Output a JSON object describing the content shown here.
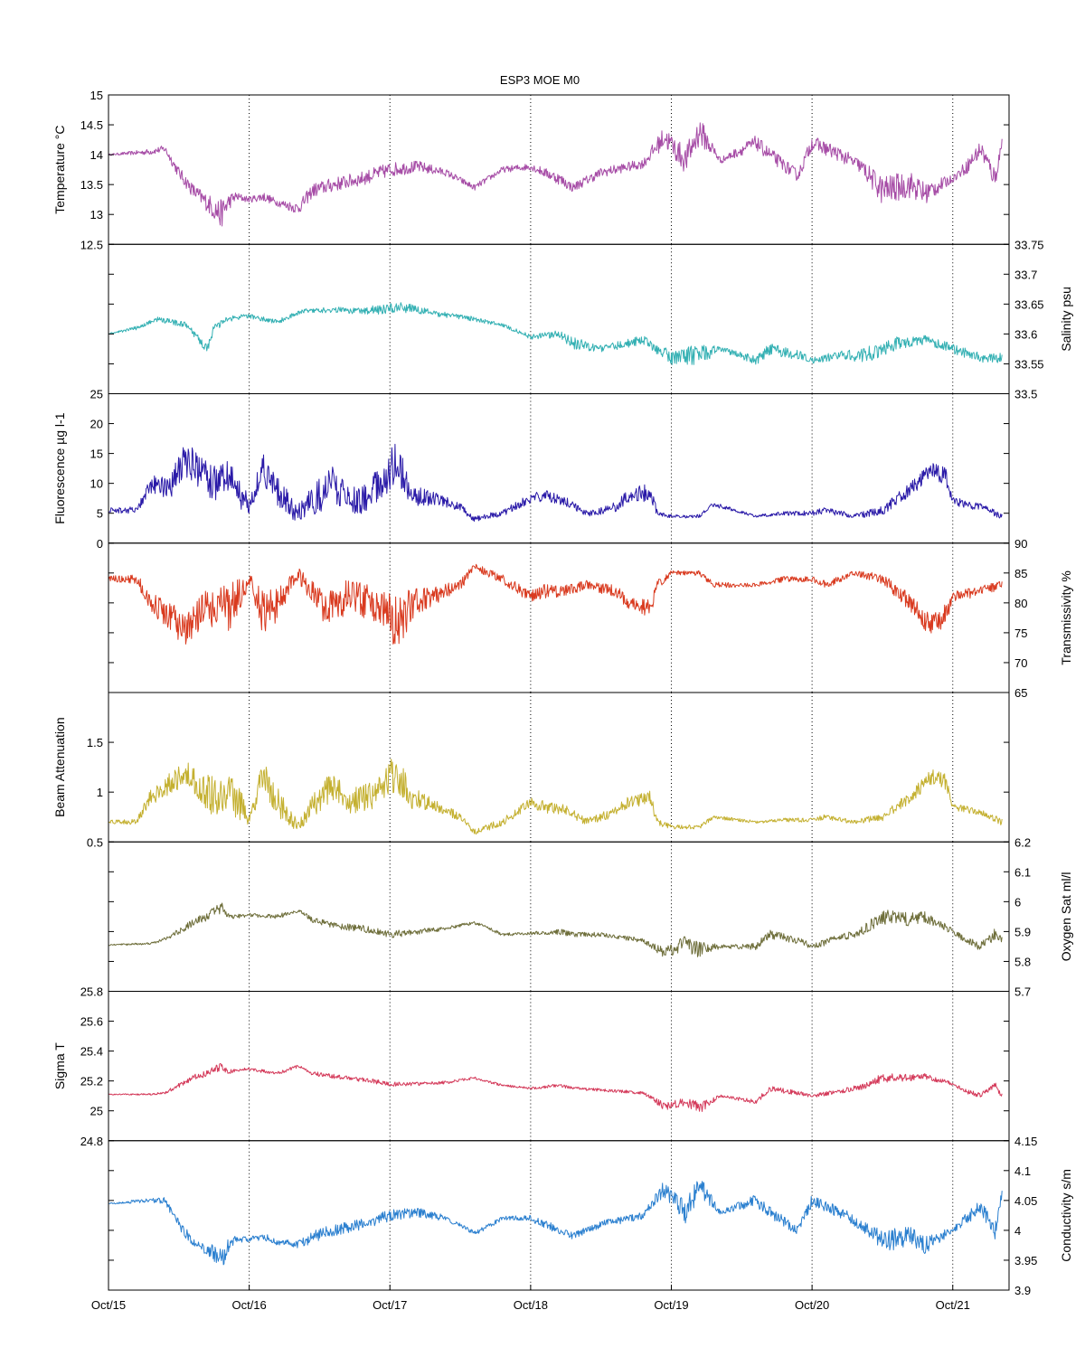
{
  "title": "ESP3 MOE   M0",
  "x_ticks": [
    "Oct/15",
    "Oct/16",
    "Oct/17",
    "Oct/18",
    "Oct/19",
    "Oct/20",
    "Oct/21"
  ],
  "chart_data": [
    {
      "type": "line",
      "ylabel": "Temperature °C",
      "label_side": "left",
      "ylim": [
        12.5,
        15
      ],
      "ticks": [
        12.5,
        13,
        13.5,
        14,
        14.5,
        15
      ],
      "show_top_tick": true,
      "color": "#a64ca6",
      "x": [
        15.0,
        15.3,
        15.4,
        15.5,
        15.6,
        15.7,
        15.8,
        15.85,
        15.9,
        16.0,
        16.1,
        16.2,
        16.35,
        16.45,
        16.6,
        16.8,
        17.0,
        17.2,
        17.4,
        17.6,
        17.8,
        18.0,
        18.2,
        18.3,
        18.5,
        18.8,
        18.95,
        19.1,
        19.2,
        19.35,
        19.6,
        19.7,
        19.9,
        20.0,
        20.2,
        20.35,
        20.5,
        20.7,
        20.8,
        21.0,
        21.1,
        21.2,
        21.3,
        21.35
      ],
      "y": [
        14.0,
        14.05,
        14.1,
        13.7,
        13.4,
        13.2,
        13.0,
        13.2,
        13.3,
        13.25,
        13.3,
        13.2,
        13.1,
        13.4,
        13.5,
        13.6,
        13.75,
        13.8,
        13.7,
        13.45,
        13.75,
        13.8,
        13.6,
        13.45,
        13.7,
        13.85,
        14.3,
        13.9,
        14.4,
        13.9,
        14.2,
        14.0,
        13.65,
        14.2,
        14.0,
        13.8,
        13.4,
        13.5,
        13.35,
        13.6,
        13.8,
        14.1,
        13.6,
        14.2
      ],
      "amp": [
        0.01,
        0.05,
        0.06,
        0.1,
        0.12,
        0.15,
        0.25,
        0.15,
        0.08,
        0.05,
        0.08,
        0.06,
        0.1,
        0.12,
        0.12,
        0.12,
        0.12,
        0.1,
        0.06,
        0.05,
        0.05,
        0.06,
        0.1,
        0.08,
        0.08,
        0.08,
        0.18,
        0.22,
        0.25,
        0.05,
        0.12,
        0.12,
        0.1,
        0.12,
        0.12,
        0.12,
        0.25,
        0.22,
        0.2,
        0.06,
        0.12,
        0.15,
        0.18,
        0.1
      ]
    },
    {
      "type": "line",
      "ylabel": "Salinity psu",
      "label_side": "right",
      "ylim": [
        33.5,
        33.75
      ],
      "ticks": [
        33.5,
        33.55,
        33.6,
        33.65,
        33.7,
        33.75
      ],
      "show_top_tick": true,
      "color": "#33b0b3",
      "x": [
        15.0,
        15.2,
        15.35,
        15.55,
        15.7,
        15.75,
        15.85,
        16.0,
        16.2,
        16.4,
        16.6,
        16.9,
        17.1,
        17.3,
        17.6,
        17.8,
        18.0,
        18.2,
        18.3,
        18.5,
        18.8,
        19.0,
        19.2,
        19.35,
        19.6,
        19.7,
        19.9,
        20.0,
        20.2,
        20.4,
        20.6,
        20.8,
        21.0,
        21.2,
        21.35
      ],
      "y": [
        33.6,
        33.61,
        33.625,
        33.615,
        33.575,
        33.61,
        33.625,
        33.63,
        33.62,
        33.64,
        33.64,
        33.64,
        33.645,
        33.635,
        33.625,
        33.615,
        33.595,
        33.6,
        33.585,
        33.575,
        33.59,
        33.56,
        33.565,
        33.575,
        33.555,
        33.575,
        33.565,
        33.555,
        33.565,
        33.565,
        33.585,
        33.59,
        33.575,
        33.56,
        33.56
      ],
      "amp": [
        0.001,
        0.003,
        0.004,
        0.005,
        0.008,
        0.006,
        0.005,
        0.004,
        0.004,
        0.004,
        0.005,
        0.008,
        0.009,
        0.005,
        0.004,
        0.003,
        0.004,
        0.006,
        0.01,
        0.006,
        0.008,
        0.012,
        0.018,
        0.004,
        0.008,
        0.01,
        0.008,
        0.005,
        0.008,
        0.014,
        0.012,
        0.008,
        0.008,
        0.008,
        0.008
      ]
    },
    {
      "type": "line",
      "ylabel": "Fluorescence µg l-1",
      "label_side": "left",
      "ylim": [
        0,
        25
      ],
      "ticks": [
        0,
        5,
        10,
        15,
        20,
        25
      ],
      "show_top_tick": true,
      "color": "#2a1aa8",
      "x": [
        15.0,
        15.2,
        15.3,
        15.45,
        15.55,
        15.65,
        15.75,
        15.85,
        15.95,
        16.0,
        16.1,
        16.2,
        16.35,
        16.5,
        16.6,
        16.7,
        16.85,
        16.95,
        17.05,
        17.15,
        17.3,
        17.5,
        17.6,
        17.8,
        18.0,
        18.1,
        18.25,
        18.4,
        18.6,
        18.7,
        18.85,
        18.9,
        19.0,
        19.2,
        19.3,
        19.6,
        19.8,
        20.0,
        20.1,
        20.3,
        20.5,
        20.7,
        20.85,
        20.95,
        21.0,
        21.2,
        21.35
      ],
      "y": [
        5.5,
        5.5,
        9.5,
        10,
        14,
        12,
        10,
        11,
        8,
        6,
        13,
        8,
        5,
        8,
        10,
        7,
        8,
        10,
        14,
        8,
        7.5,
        6,
        4,
        5,
        7.5,
        8,
        7,
        5,
        6,
        8,
        8.5,
        5,
        4.5,
        4.5,
        6.5,
        4.5,
        5,
        5,
        5.5,
        4.5,
        5.5,
        9,
        12.5,
        11,
        7,
        6,
        4.5
      ],
      "amp": [
        0.4,
        0.6,
        1.5,
        2.5,
        3,
        3,
        3,
        3,
        3,
        1,
        3,
        3,
        1.5,
        3,
        3,
        2.5,
        3,
        3,
        4,
        2,
        1.2,
        0.8,
        0.4,
        0.6,
        0.8,
        1,
        0.8,
        0.6,
        0.8,
        1.2,
        1.5,
        0.5,
        0.3,
        0.3,
        0.4,
        0.2,
        0.4,
        0.4,
        0.6,
        0.4,
        0.8,
        1.2,
        1.5,
        1.5,
        0.8,
        0.6,
        0.5
      ]
    },
    {
      "type": "line",
      "ylabel": "Transmissivity %",
      "label_side": "right",
      "ylim": [
        65,
        90
      ],
      "ticks": [
        65,
        70,
        75,
        80,
        85,
        90
      ],
      "show_top_tick": true,
      "color": "#d93a1f",
      "x": [
        15.0,
        15.2,
        15.3,
        15.45,
        15.55,
        15.65,
        15.75,
        15.85,
        15.95,
        16.0,
        16.1,
        16.2,
        16.35,
        16.5,
        16.6,
        16.7,
        16.85,
        16.95,
        17.05,
        17.15,
        17.3,
        17.5,
        17.6,
        17.8,
        18.0,
        18.1,
        18.25,
        18.4,
        18.6,
        18.7,
        18.85,
        18.9,
        19.0,
        19.2,
        19.3,
        19.6,
        19.8,
        20.0,
        20.1,
        20.3,
        20.5,
        20.7,
        20.85,
        20.95,
        21.0,
        21.2,
        21.35
      ],
      "y": [
        84,
        84,
        80,
        77,
        75,
        78,
        80,
        79,
        82,
        84,
        78,
        80,
        85,
        80,
        79,
        81,
        80,
        79,
        76,
        80,
        81,
        83,
        86,
        84,
        81,
        82,
        82,
        83,
        82,
        80,
        79,
        83,
        85,
        85,
        83,
        83,
        84,
        84,
        83,
        85,
        84,
        80,
        76,
        78,
        81,
        82,
        83
      ],
      "amp": [
        0.5,
        0.8,
        2,
        3,
        3,
        3,
        4,
        4,
        3,
        1,
        4,
        3,
        1.5,
        3,
        3,
        3,
        3,
        3,
        5,
        3,
        1.5,
        1,
        0.6,
        0.8,
        1,
        1.2,
        1,
        0.8,
        1,
        1.2,
        1.5,
        0.8,
        0.4,
        0.4,
        0.5,
        0.3,
        0.5,
        0.5,
        0.7,
        0.4,
        0.9,
        1.5,
        2,
        1.8,
        1,
        0.8,
        0.8
      ]
    },
    {
      "type": "line",
      "ylabel": "Beam Attenuation",
      "label_side": "left",
      "ylim": [
        0.5,
        2
      ],
      "ticks": [
        0.5,
        1,
        1.5,
        2
      ],
      "show_top_tick": false,
      "color": "#c4b030",
      "x": [
        15.0,
        15.2,
        15.3,
        15.45,
        15.55,
        15.65,
        15.75,
        15.85,
        15.95,
        16.0,
        16.1,
        16.2,
        16.35,
        16.5,
        16.6,
        16.7,
        16.85,
        16.95,
        17.05,
        17.15,
        17.3,
        17.5,
        17.6,
        17.8,
        18.0,
        18.1,
        18.25,
        18.4,
        18.6,
        18.7,
        18.85,
        18.9,
        19.0,
        19.2,
        19.3,
        19.6,
        19.8,
        20.0,
        20.1,
        20.3,
        20.5,
        20.7,
        20.85,
        20.95,
        21.0,
        21.2,
        21.35
      ],
      "y": [
        0.7,
        0.7,
        0.95,
        1.1,
        1.2,
        1.05,
        0.95,
        1.0,
        0.85,
        0.7,
        1.2,
        0.9,
        0.65,
        0.95,
        1.05,
        0.9,
        0.95,
        1.05,
        1.2,
        0.95,
        0.88,
        0.75,
        0.6,
        0.7,
        0.9,
        0.85,
        0.82,
        0.7,
        0.8,
        0.9,
        0.95,
        0.7,
        0.65,
        0.65,
        0.75,
        0.7,
        0.72,
        0.72,
        0.75,
        0.7,
        0.75,
        0.95,
        1.15,
        1.1,
        0.85,
        0.8,
        0.7
      ],
      "amp": [
        0.02,
        0.03,
        0.08,
        0.12,
        0.12,
        0.15,
        0.2,
        0.2,
        0.15,
        0.04,
        0.18,
        0.15,
        0.05,
        0.15,
        0.15,
        0.12,
        0.15,
        0.15,
        0.22,
        0.12,
        0.06,
        0.04,
        0.03,
        0.04,
        0.05,
        0.06,
        0.05,
        0.04,
        0.05,
        0.06,
        0.07,
        0.04,
        0.02,
        0.02,
        0.02,
        0.015,
        0.02,
        0.02,
        0.03,
        0.02,
        0.04,
        0.06,
        0.08,
        0.08,
        0.04,
        0.03,
        0.04
      ]
    },
    {
      "type": "line",
      "ylabel": "Oxygen Sat ml/l",
      "label_side": "right",
      "ylim": [
        5.7,
        6.2
      ],
      "ticks": [
        5.7,
        5.8,
        5.9,
        6,
        6.1,
        6.2
      ],
      "show_top_tick": true,
      "color": "#6e6e3a",
      "x": [
        15.0,
        15.3,
        15.4,
        15.5,
        15.6,
        15.7,
        15.8,
        15.85,
        15.9,
        16.0,
        16.2,
        16.35,
        16.45,
        16.6,
        16.8,
        17.0,
        17.2,
        17.4,
        17.6,
        17.8,
        18.0,
        18.2,
        18.3,
        18.5,
        18.8,
        18.95,
        19.1,
        19.2,
        19.35,
        19.6,
        19.7,
        19.9,
        20.0,
        20.2,
        20.35,
        20.5,
        20.7,
        20.8,
        21.0,
        21.1,
        21.2,
        21.3,
        21.35
      ],
      "y": [
        5.855,
        5.86,
        5.875,
        5.9,
        5.93,
        5.95,
        5.98,
        5.96,
        5.95,
        5.955,
        5.95,
        5.97,
        5.94,
        5.92,
        5.91,
        5.89,
        5.9,
        5.91,
        5.93,
        5.89,
        5.895,
        5.9,
        5.89,
        5.89,
        5.87,
        5.83,
        5.86,
        5.84,
        5.85,
        5.85,
        5.89,
        5.87,
        5.85,
        5.88,
        5.9,
        5.95,
        5.94,
        5.95,
        5.9,
        5.87,
        5.85,
        5.89,
        5.87
      ],
      "amp": [
        0.002,
        0.004,
        0.006,
        0.01,
        0.012,
        0.015,
        0.02,
        0.012,
        0.008,
        0.006,
        0.008,
        0.006,
        0.01,
        0.01,
        0.012,
        0.012,
        0.01,
        0.006,
        0.006,
        0.005,
        0.006,
        0.01,
        0.008,
        0.008,
        0.008,
        0.018,
        0.025,
        0.03,
        0.006,
        0.012,
        0.015,
        0.012,
        0.01,
        0.012,
        0.015,
        0.025,
        0.022,
        0.02,
        0.01,
        0.012,
        0.015,
        0.02,
        0.015
      ]
    },
    {
      "type": "line",
      "ylabel": "Sigma T",
      "label_side": "left",
      "ylim": [
        24.8,
        25.8
      ],
      "ticks": [
        24.8,
        25,
        25.2,
        25.4,
        25.6,
        25.8
      ],
      "show_top_tick": true,
      "color": "#d43a5a",
      "x": [
        15.0,
        15.3,
        15.4,
        15.5,
        15.6,
        15.7,
        15.8,
        15.85,
        15.9,
        16.0,
        16.2,
        16.35,
        16.45,
        16.6,
        16.8,
        17.0,
        17.2,
        17.4,
        17.6,
        17.8,
        18.0,
        18.2,
        18.3,
        18.5,
        18.8,
        18.95,
        19.1,
        19.2,
        19.35,
        19.6,
        19.7,
        19.9,
        20.0,
        20.2,
        20.35,
        20.5,
        20.7,
        20.8,
        21.0,
        21.1,
        21.2,
        21.3,
        21.35
      ],
      "y": [
        25.11,
        25.11,
        25.12,
        25.17,
        25.22,
        25.25,
        25.3,
        25.26,
        25.27,
        25.28,
        25.25,
        25.3,
        25.25,
        25.23,
        25.21,
        25.18,
        25.18,
        25.19,
        25.22,
        25.17,
        25.15,
        25.17,
        25.15,
        25.14,
        25.12,
        25.03,
        25.06,
        25.02,
        25.1,
        25.06,
        25.15,
        25.12,
        25.1,
        25.13,
        25.16,
        25.22,
        25.22,
        25.23,
        25.18,
        25.13,
        25.1,
        25.18,
        25.1
      ],
      "amp": [
        0.003,
        0.006,
        0.008,
        0.015,
        0.02,
        0.02,
        0.03,
        0.015,
        0.01,
        0.01,
        0.012,
        0.01,
        0.015,
        0.015,
        0.015,
        0.015,
        0.012,
        0.01,
        0.008,
        0.008,
        0.008,
        0.012,
        0.01,
        0.01,
        0.01,
        0.025,
        0.03,
        0.04,
        0.008,
        0.015,
        0.02,
        0.015,
        0.012,
        0.015,
        0.02,
        0.03,
        0.025,
        0.02,
        0.012,
        0.015,
        0.018,
        0.02,
        0.02
      ]
    },
    {
      "type": "line",
      "ylabel": "Conductivity s/m",
      "label_side": "right",
      "ylim": [
        3.9,
        4.15
      ],
      "ticks": [
        3.9,
        3.95,
        4,
        4.05,
        4.1,
        4.15
      ],
      "show_top_tick": true,
      "color": "#2a7fcf",
      "x": [
        15.0,
        15.3,
        15.4,
        15.5,
        15.6,
        15.7,
        15.8,
        15.85,
        15.9,
        16.0,
        16.1,
        16.2,
        16.35,
        16.45,
        16.6,
        16.8,
        17.0,
        17.2,
        17.4,
        17.6,
        17.8,
        18.0,
        18.2,
        18.3,
        18.5,
        18.8,
        18.95,
        19.1,
        19.2,
        19.35,
        19.6,
        19.7,
        19.9,
        20.0,
        20.2,
        20.35,
        20.5,
        20.7,
        20.8,
        21.0,
        21.1,
        21.2,
        21.3,
        21.35
      ],
      "y": [
        4.045,
        4.05,
        4.05,
        4.01,
        3.98,
        3.97,
        3.95,
        3.975,
        3.985,
        3.985,
        3.99,
        3.98,
        3.975,
        3.99,
        4.0,
        4.01,
        4.025,
        4.03,
        4.02,
        3.995,
        4.02,
        4.02,
        4.0,
        3.99,
        4.01,
        4.025,
        4.07,
        4.03,
        4.075,
        4.03,
        4.05,
        4.03,
        4.0,
        4.05,
        4.03,
        4.01,
        3.98,
        3.99,
        3.975,
        4.0,
        4.02,
        4.04,
        4.0,
        4.06
      ],
      "amp": [
        0.001,
        0.004,
        0.005,
        0.008,
        0.01,
        0.012,
        0.02,
        0.012,
        0.006,
        0.004,
        0.006,
        0.005,
        0.008,
        0.01,
        0.01,
        0.01,
        0.01,
        0.008,
        0.005,
        0.004,
        0.004,
        0.005,
        0.008,
        0.006,
        0.006,
        0.006,
        0.014,
        0.018,
        0.02,
        0.004,
        0.01,
        0.01,
        0.008,
        0.01,
        0.01,
        0.01,
        0.02,
        0.018,
        0.016,
        0.005,
        0.01,
        0.012,
        0.015,
        0.008
      ]
    }
  ]
}
